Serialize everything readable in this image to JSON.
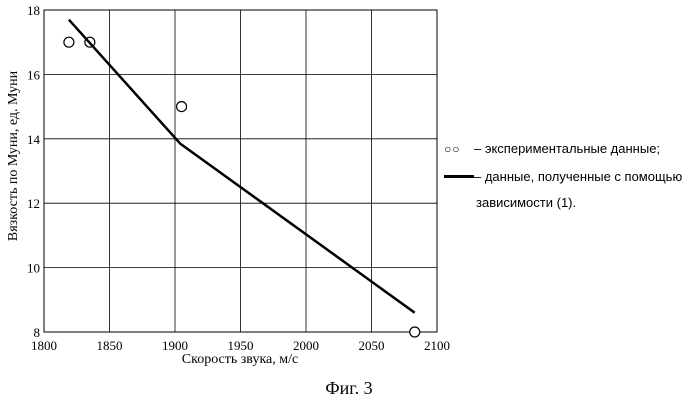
{
  "chart_data": {
    "type": "line",
    "title": "",
    "xlabel": "Скорость звука, м/с",
    "ylabel": "Вязкость по Муни, ед. Муни",
    "xlim": [
      1800,
      2100
    ],
    "ylim": [
      8,
      18
    ],
    "xticks": [
      1800,
      1850,
      1900,
      1950,
      2000,
      2050,
      2100
    ],
    "yticks": [
      8,
      10,
      12,
      14,
      16,
      18
    ],
    "grid": true,
    "series": [
      {
        "name": "– экспериментальные данные;",
        "style": "markers",
        "marker": "open-circle",
        "x": [
          1819,
          1835,
          1905,
          2083
        ],
        "y": [
          17.0,
          17.0,
          15.0,
          8.0
        ]
      },
      {
        "name": "– данные, полученные с помощью зависимости (1).",
        "style": "line",
        "color": "#000000",
        "x": [
          1819,
          1904,
          2083
        ],
        "y": [
          17.7,
          13.85,
          8.6
        ]
      }
    ]
  },
  "legend": {
    "markers_glyph": "○○",
    "markers_label": "– экспериментальные данные;",
    "line_label_1": "– данные, полученные с  помощью",
    "line_label_2": "зависимости (1)."
  },
  "caption": "Фиг. 3"
}
